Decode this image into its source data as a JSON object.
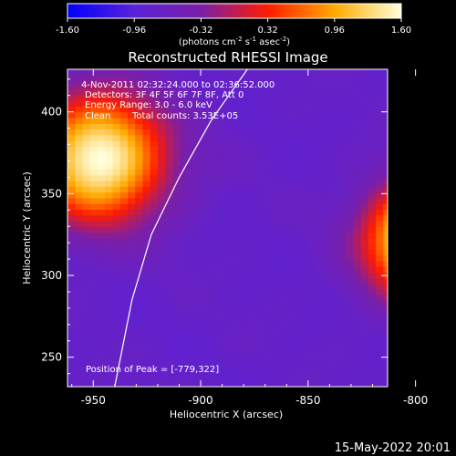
{
  "chart_data": {
    "type": "heatmap",
    "title": "Reconstructed RHESSI Image",
    "xlabel": "Heliocentric X (arcsec)",
    "ylabel": "Heliocentric Y (arcsec)",
    "xlim": [
      -962,
      -813
    ],
    "ylim": [
      232,
      426
    ],
    "x_ticks": [
      -950,
      -900,
      -850,
      -800
    ],
    "y_ticks": [
      250,
      300,
      350,
      400
    ],
    "colorbar": {
      "min": -1.6,
      "max": 1.6,
      "tick_values": [
        -1.6,
        -0.96,
        -0.32,
        0.32,
        0.96,
        1.6
      ],
      "tick_labels": [
        "-1.60",
        "-0.96",
        "-0.32",
        "0.32",
        "0.96",
        "1.60"
      ],
      "unit_label": "(photons cm",
      "unit_exp1": "-2",
      "unit_mid": " s",
      "unit_exp2": "-1",
      "unit_end": " asec",
      "unit_exp3": "-2",
      "unit_close": ")",
      "colors": [
        "#0000ff",
        "#5a22d8",
        "#7a1fa8",
        "#ff1b00",
        "#ffaa00",
        "#ffffdc"
      ]
    },
    "sources": [
      {
        "x": -947,
        "y": 372,
        "peak": 1.6
      },
      {
        "x": -800,
        "y": 322,
        "peak": 1.5
      }
    ],
    "limb_curve": [
      {
        "x": -940,
        "y": 232
      },
      {
        "x": -932,
        "y": 285
      },
      {
        "x": -923,
        "y": 325
      },
      {
        "x": -910,
        "y": 360
      },
      {
        "x": -895,
        "y": 395
      },
      {
        "x": -875,
        "y": 432
      }
    ],
    "annotations": [
      "4-Nov-2011 02:32:24.000 to 02:36:52.000",
      "Detectors: 3F 4F 5F 6F 7F 8F, Att 0",
      "Energy Range: 3.0 - 6.0 keV",
      "Clean",
      "Total counts: 3.53E+05"
    ],
    "peak_text": "Position of Peak = [-779,322]",
    "grid": false
  },
  "footer": {
    "date": "15-May-2022 20:01"
  }
}
